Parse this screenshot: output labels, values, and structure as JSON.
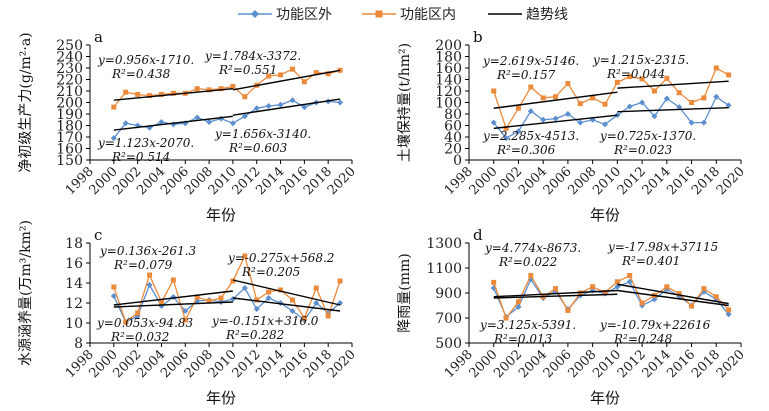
{
  "legend": {
    "outside": {
      "label": "功能区外",
      "color": "#5b8fcf"
    },
    "inside": {
      "label": "功能区内",
      "color": "#ec8a3c"
    },
    "trend": {
      "label": "趋势线",
      "color": "#000000"
    }
  },
  "chart_data": [
    {
      "type": "line",
      "panel_label": "a",
      "ylabel": "净初级生产力(g/m²·a)",
      "xlabel": "年份",
      "xlim": [
        1998,
        2020
      ],
      "ylim": [
        150,
        250
      ],
      "xticks": [
        "1998",
        "2000",
        "2002",
        "2004",
        "2006",
        "2008",
        "2010",
        "2012",
        "2014",
        "2016",
        "2018",
        "2020"
      ],
      "yticks": [
        "150",
        "160",
        "170",
        "180",
        "190",
        "200",
        "210",
        "220",
        "230",
        "240",
        "250"
      ],
      "x": [
        2000,
        2001,
        2002,
        2003,
        2004,
        2005,
        2006,
        2007,
        2008,
        2009,
        2010,
        2011,
        2012,
        2013,
        2014,
        2015,
        2016,
        2017,
        2018,
        2019
      ],
      "series": [
        {
          "name": "功能区外",
          "color": "#5b8fcf",
          "values": [
            169,
            182,
            180,
            178,
            183,
            181,
            182,
            187,
            183,
            186,
            182,
            188,
            195,
            197,
            198,
            202,
            196,
            200,
            201,
            200
          ]
        },
        {
          "name": "功能区内",
          "color": "#ec8a3c",
          "values": [
            196,
            209,
            207,
            206,
            207,
            208,
            208,
            212,
            211,
            212,
            214,
            205,
            215,
            223,
            224,
            229,
            218,
            226,
            225,
            228
          ]
        }
      ],
      "trendlines": [
        {
          "x": [
            2000,
            2010
          ],
          "y": [
            202,
            212
          ],
          "eq": "y=0.956x-1710.",
          "r2": "R²=0.438"
        },
        {
          "x": [
            2010,
            2019
          ],
          "y": [
            211,
            228
          ],
          "eq": "y=1.784x-3372.",
          "r2": "R²=0.551"
        },
        {
          "x": [
            2000,
            2010
          ],
          "y": [
            176,
            188
          ],
          "eq": "y=1.123x-2070.",
          "r2": "R²=0.514"
        },
        {
          "x": [
            2010,
            2019
          ],
          "y": [
            189,
            203
          ],
          "eq": "y=1.656x-3140.",
          "r2": "R²=0.603"
        }
      ]
    },
    {
      "type": "line",
      "panel_label": "b",
      "ylabel": "土壤保持量(t/hm²)",
      "xlabel": "年份",
      "xlim": [
        1998,
        2020
      ],
      "ylim": [
        0,
        200
      ],
      "xticks": [
        "1998",
        "2000",
        "2002",
        "2004",
        "2006",
        "2008",
        "2010",
        "2012",
        "2014",
        "2016",
        "2018",
        "2020"
      ],
      "yticks": [
        "0",
        "20",
        "40",
        "60",
        "80",
        "100",
        "120",
        "140",
        "160",
        "180",
        "200"
      ],
      "x": [
        2000,
        2001,
        2002,
        2003,
        2004,
        2005,
        2006,
        2007,
        2008,
        2009,
        2010,
        2011,
        2012,
        2013,
        2014,
        2015,
        2016,
        2017,
        2018,
        2019
      ],
      "series": [
        {
          "name": "功能区外",
          "color": "#5b8fcf",
          "values": [
            65,
            38,
            50,
            85,
            70,
            72,
            80,
            65,
            70,
            62,
            78,
            93,
            100,
            76,
            107,
            92,
            65,
            65,
            110,
            95
          ]
        },
        {
          "name": "功能区内",
          "color": "#ec8a3c",
          "values": [
            120,
            55,
            90,
            127,
            108,
            110,
            133,
            98,
            108,
            97,
            135,
            145,
            141,
            120,
            142,
            117,
            100,
            108,
            160,
            148
          ]
        }
      ],
      "trendlines": [
        {
          "x": [
            2000,
            2010
          ],
          "y": [
            90,
            118
          ],
          "eq": "y=2.619x-5146.",
          "r2": "R²=0.157"
        },
        {
          "x": [
            2010,
            2019
          ],
          "y": [
            125,
            137
          ],
          "eq": "y=1.215x-2315.",
          "r2": "R²=0.044"
        },
        {
          "x": [
            2000,
            2010
          ],
          "y": [
            55,
            78
          ],
          "eq": "y=2.285x-4513.",
          "r2": "R²=0.306"
        },
        {
          "x": [
            2010,
            2019
          ],
          "y": [
            84,
            91
          ],
          "eq": "y=0.725x-1370.",
          "r2": "R²=0.023"
        }
      ]
    },
    {
      "type": "line",
      "panel_label": "c",
      "ylabel": "水源涵养量(万m³/km²)",
      "xlabel": "年份",
      "xlim": [
        1998,
        2020
      ],
      "ylim": [
        8,
        18
      ],
      "xticks": [
        "1998",
        "2000",
        "2002",
        "2004",
        "2006",
        "2008",
        "2010",
        "2012",
        "2014",
        "2016",
        "2018",
        "2020"
      ],
      "yticks": [
        "8",
        "10",
        "12",
        "14",
        "16",
        "18"
      ],
      "x": [
        2000,
        2001,
        2002,
        2003,
        2004,
        2005,
        2006,
        2007,
        2008,
        2009,
        2010,
        2011,
        2012,
        2013,
        2014,
        2015,
        2016,
        2017,
        2018,
        2019
      ],
      "series": [
        {
          "name": "功能区外",
          "color": "#5b8fcf",
          "values": [
            12.7,
            10.1,
            10.7,
            13.8,
            11.7,
            12.6,
            11.2,
            12.2,
            12.3,
            12.1,
            12.4,
            13.5,
            11.4,
            12.5,
            12.0,
            11.2,
            10.3,
            12.0,
            11.0,
            12.0
          ]
        },
        {
          "name": "功能区内",
          "color": "#ec8a3c",
          "values": [
            13.6,
            10.1,
            11.0,
            14.8,
            12.1,
            14.3,
            10.3,
            12.6,
            12.2,
            12.5,
            14.2,
            16.7,
            12.3,
            13.1,
            13.3,
            12.3,
            10.5,
            13.5,
            10.7,
            14.2
          ]
        }
      ],
      "trendlines": [
        {
          "x": [
            2000,
            2010
          ],
          "y": [
            11.8,
            13.2
          ],
          "eq": "y=0.136x-261.3",
          "r2": "R²=0.079"
        },
        {
          "x": [
            2010,
            2019
          ],
          "y": [
            14.3,
            11.8
          ],
          "eq": "y=-0.275x+568.2",
          "r2": "R²=0.205"
        },
        {
          "x": [
            2000,
            2010
          ],
          "y": [
            11.6,
            12.1
          ],
          "eq": "y=0.053x-94.83",
          "r2": "R²=0.032"
        },
        {
          "x": [
            2010,
            2019
          ],
          "y": [
            12.5,
            11.2
          ],
          "eq": "y=-0.151x+316.0",
          "r2": "R²=0.282"
        }
      ]
    },
    {
      "type": "line",
      "panel_label": "d",
      "ylabel": "降雨量(mm)",
      "xlabel": "年份",
      "xlim": [
        1998,
        2020
      ],
      "ylim": [
        500,
        1300
      ],
      "xticks": [
        "1998",
        "2000",
        "2002",
        "2004",
        "2006",
        "2008",
        "2010",
        "2012",
        "2014",
        "2016",
        "2018",
        "2020"
      ],
      "yticks": [
        "500",
        "700",
        "900",
        "1100",
        "1300"
      ],
      "x": [
        2000,
        2001,
        2002,
        2003,
        2004,
        2005,
        2006,
        2007,
        2008,
        2009,
        2010,
        2011,
        2012,
        2013,
        2014,
        2015,
        2016,
        2017,
        2018,
        2019
      ],
      "series": [
        {
          "name": "功能区外",
          "color": "#5b8fcf",
          "values": [
            940,
            710,
            790,
            1010,
            860,
            915,
            770,
            880,
            920,
            895,
            950,
            990,
            800,
            850,
            930,
            875,
            800,
            910,
            850,
            730
          ]
        },
        {
          "name": "功能区内",
          "color": "#ec8a3c",
          "values": [
            985,
            700,
            830,
            1040,
            870,
            935,
            760,
            900,
            950,
            905,
            990,
            1040,
            820,
            880,
            950,
            895,
            795,
            935,
            870,
            765
          ]
        }
      ],
      "trendlines": [
        {
          "x": [
            2000,
            2010
          ],
          "y": [
            870,
            920
          ],
          "eq": "y=4.774x-8673.",
          "r2": "R²=0.022"
        },
        {
          "x": [
            2010,
            2019
          ],
          "y": [
            970,
            815
          ],
          "eq": "y=-17.98x+37115",
          "r2": "R²=0.401"
        },
        {
          "x": [
            2000,
            2010
          ],
          "y": [
            860,
            890
          ],
          "eq": "y=3.125x-5391.",
          "r2": "R²=0.013"
        },
        {
          "x": [
            2010,
            2019
          ],
          "y": [
            920,
            800
          ],
          "eq": "y=-10.79x+22616",
          "r2": "R²=0.248"
        }
      ]
    }
  ]
}
